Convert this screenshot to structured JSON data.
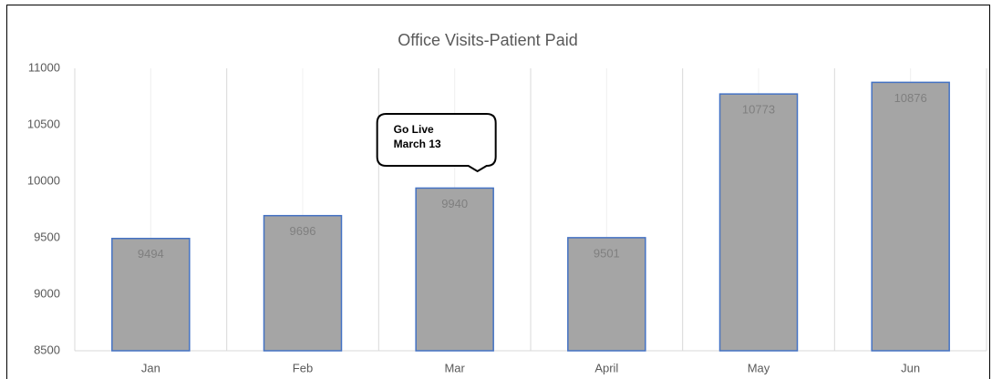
{
  "chart_data": {
    "type": "bar",
    "title": "Office Visits-Patient Paid",
    "categories": [
      "Jan",
      "Feb",
      "Mar",
      "April",
      "May",
      "Jun"
    ],
    "values": [
      9494,
      9696,
      9940,
      9501,
      10773,
      10876
    ],
    "color": "#a5a5a5",
    "edge_color": "#4472c4",
    "ylim": [
      8500,
      11000
    ],
    "yticks": [
      8500,
      9000,
      9500,
      10000,
      10500,
      11000
    ],
    "annotation": [
      "Go Live",
      "March 13"
    ]
  }
}
